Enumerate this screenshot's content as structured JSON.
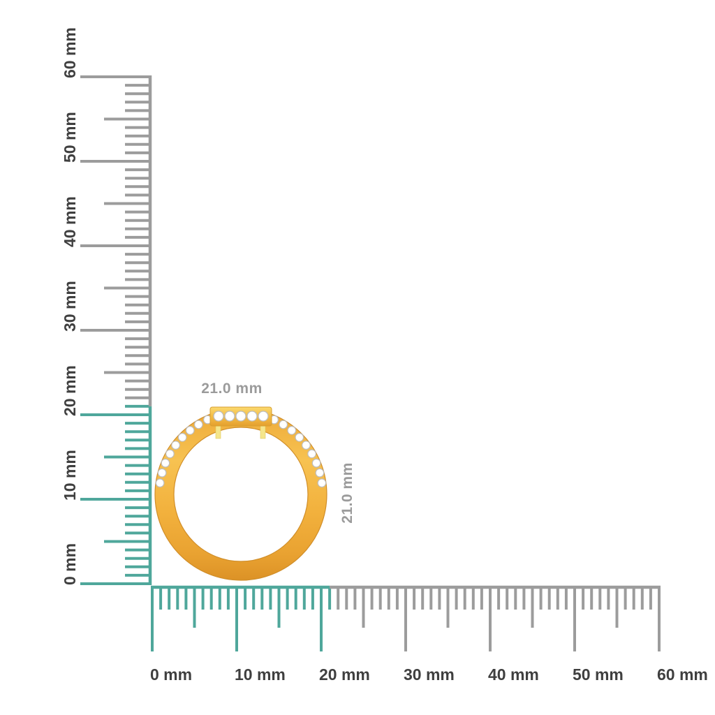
{
  "scene": {
    "background": "#ffffff",
    "subject": "yellow-gold diamond ring side profile with millimeter rulers"
  },
  "measurements": {
    "width": "21.0 mm",
    "height": "21.0 mm",
    "width_mm": 21.0,
    "height_mm": 21.0,
    "label_color": "#9B9B9B"
  },
  "rulers": {
    "unit": "mm",
    "min": 0,
    "max": 60,
    "major_step_mm": 10,
    "medium_step_mm": 5,
    "minor_step_mm": 1,
    "highlight_mm": 21,
    "highlight_color": "#4FA79B",
    "tick_color": "#9C9C9C",
    "label_color": "#3F3F3F",
    "vertical_labels": [
      "0 mm",
      "10 mm",
      "20 mm",
      "30 mm",
      "40 mm",
      "50 mm",
      "60 mm"
    ],
    "horizontal_labels": [
      "0 mm",
      "10 mm",
      "20 mm",
      "30 mm",
      "40 mm",
      "50 mm",
      "60 mm"
    ]
  },
  "ring": {
    "metal_color": "#F2B23E",
    "metal_dark": "#DC9226",
    "metal_light": "#FBD96E",
    "prong_color": "#F5E68C",
    "diamond_color": "#FFFFFF",
    "diamond_outline": "#BDBDBD"
  }
}
